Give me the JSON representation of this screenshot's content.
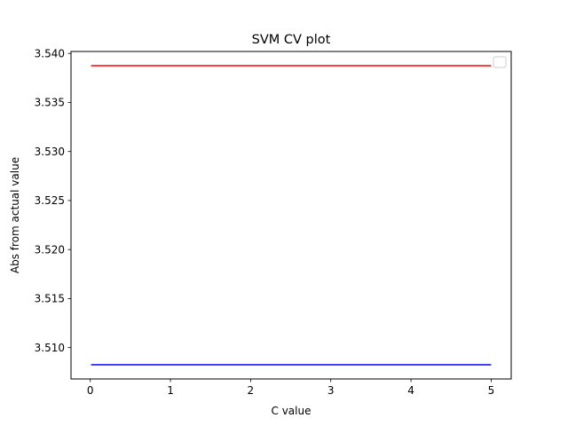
{
  "chart_data": {
    "type": "line",
    "title": "SVM CV plot",
    "xlabel": "C value",
    "ylabel": "Abs from actual value",
    "x": [
      0.01,
      5
    ],
    "xlim": [
      -0.24,
      5.25
    ],
    "ylim": [
      3.5068,
      3.5402
    ],
    "xticks": [
      0,
      1,
      2,
      3,
      4,
      5
    ],
    "xtick_labels": [
      "0",
      "1",
      "2",
      "3",
      "4",
      "5"
    ],
    "yticks": [
      3.51,
      3.515,
      3.52,
      3.525,
      3.53,
      3.535,
      3.54
    ],
    "ytick_labels": [
      "3.510",
      "3.515",
      "3.520",
      "3.525",
      "3.530",
      "3.535",
      "3.540"
    ],
    "grid": false,
    "legend": {
      "placement": "top-right",
      "entries": []
    },
    "series": [
      {
        "values": [
          3.53875,
          3.53875
        ],
        "color": "#ff0000"
      },
      {
        "values": [
          3.50825,
          3.50825
        ],
        "color": "#0000ff"
      }
    ]
  }
}
